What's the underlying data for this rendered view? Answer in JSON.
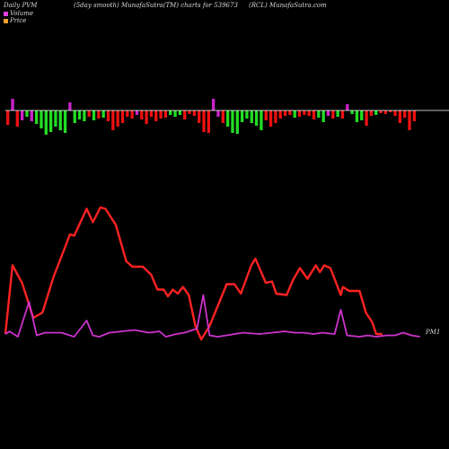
{
  "header": {
    "left": "Daily PVM",
    "center": "(5day smooth) MunafaSutra(TM) charts for 539673",
    "right": "(RCL) MunafaSutra.com"
  },
  "legend": {
    "volume_label": "Volume",
    "price_label": "Price",
    "volume_color": "#e040e0",
    "price_color": "#f0a030"
  },
  "end_label": "PM1",
  "colors": {
    "background": "#000000",
    "baseline": "#ffffff",
    "bar_up": "#22dd22",
    "bar_down": "#ee1111",
    "bar_high": "#cc22cc",
    "price_line": "#ff2222",
    "volume_line": "#cc33cc"
  },
  "chart_data": {
    "type": "line",
    "title": "",
    "bars": [
      {
        "v": -16,
        "c": "red"
      },
      {
        "v": 13,
        "c": "magenta"
      },
      {
        "v": -18,
        "c": "red"
      },
      {
        "v": -11,
        "c": "magenta"
      },
      {
        "v": -7,
        "c": "green"
      },
      {
        "v": -12,
        "c": "magenta"
      },
      {
        "v": -15,
        "c": "green"
      },
      {
        "v": -20,
        "c": "green"
      },
      {
        "v": -27,
        "c": "green"
      },
      {
        "v": -24,
        "c": "green"
      },
      {
        "v": -18,
        "c": "green"
      },
      {
        "v": -22,
        "c": "green"
      },
      {
        "v": -25,
        "c": "green"
      },
      {
        "v": 9,
        "c": "magenta"
      },
      {
        "v": -14,
        "c": "green"
      },
      {
        "v": -10,
        "c": "green"
      },
      {
        "v": -12,
        "c": "green"
      },
      {
        "v": -7,
        "c": "red"
      },
      {
        "v": -11,
        "c": "green"
      },
      {
        "v": -9,
        "c": "red"
      },
      {
        "v": -8,
        "c": "green"
      },
      {
        "v": -12,
        "c": "red"
      },
      {
        "v": -22,
        "c": "red"
      },
      {
        "v": -18,
        "c": "red"
      },
      {
        "v": -14,
        "c": "red"
      },
      {
        "v": -7,
        "c": "red"
      },
      {
        "v": -9,
        "c": "red"
      },
      {
        "v": -5,
        "c": "magenta"
      },
      {
        "v": -10,
        "c": "red"
      },
      {
        "v": -15,
        "c": "red"
      },
      {
        "v": -7,
        "c": "red"
      },
      {
        "v": -12,
        "c": "red"
      },
      {
        "v": -9,
        "c": "red"
      },
      {
        "v": -8,
        "c": "red"
      },
      {
        "v": -5,
        "c": "green"
      },
      {
        "v": -7,
        "c": "green"
      },
      {
        "v": -5,
        "c": "green"
      },
      {
        "v": -10,
        "c": "red"
      },
      {
        "v": -4,
        "c": "red"
      },
      {
        "v": -6,
        "c": "red"
      },
      {
        "v": -14,
        "c": "red"
      },
      {
        "v": -24,
        "c": "red"
      },
      {
        "v": -25,
        "c": "red"
      },
      {
        "v": 13,
        "c": "magenta"
      },
      {
        "v": -7,
        "c": "magenta"
      },
      {
        "v": -14,
        "c": "red"
      },
      {
        "v": -18,
        "c": "green"
      },
      {
        "v": -25,
        "c": "green"
      },
      {
        "v": -26,
        "c": "green"
      },
      {
        "v": -13,
        "c": "green"
      },
      {
        "v": -9,
        "c": "green"
      },
      {
        "v": -14,
        "c": "green"
      },
      {
        "v": -17,
        "c": "green"
      },
      {
        "v": -22,
        "c": "green"
      },
      {
        "v": -11,
        "c": "red"
      },
      {
        "v": -18,
        "c": "red"
      },
      {
        "v": -14,
        "c": "red"
      },
      {
        "v": -9,
        "c": "red"
      },
      {
        "v": -6,
        "c": "red"
      },
      {
        "v": -5,
        "c": "red"
      },
      {
        "v": -8,
        "c": "green"
      },
      {
        "v": -7,
        "c": "red"
      },
      {
        "v": -5,
        "c": "red"
      },
      {
        "v": -6,
        "c": "red"
      },
      {
        "v": -10,
        "c": "red"
      },
      {
        "v": -8,
        "c": "green"
      },
      {
        "v": -13,
        "c": "green"
      },
      {
        "v": -6,
        "c": "magenta"
      },
      {
        "v": -9,
        "c": "red"
      },
      {
        "v": -7,
        "c": "green"
      },
      {
        "v": -9,
        "c": "red"
      },
      {
        "v": 7,
        "c": "magenta"
      },
      {
        "v": -4,
        "c": "green"
      },
      {
        "v": -13,
        "c": "green"
      },
      {
        "v": -11,
        "c": "green"
      },
      {
        "v": -17,
        "c": "red"
      },
      {
        "v": -6,
        "c": "red"
      },
      {
        "v": -5,
        "c": "green"
      },
      {
        "v": -3,
        "c": "red"
      },
      {
        "v": -4,
        "c": "red"
      },
      {
        "v": -2,
        "c": "red"
      },
      {
        "v": -6,
        "c": "red"
      },
      {
        "v": -14,
        "c": "red"
      },
      {
        "v": -8,
        "c": "red"
      },
      {
        "v": -22,
        "c": "red"
      },
      {
        "v": -12,
        "c": "red"
      }
    ],
    "price_series": [
      {
        "x": 0,
        "y": 0.04
      },
      {
        "x": 1.7,
        "y": 0.55
      },
      {
        "x": 4,
        "y": 0.42
      },
      {
        "x": 6.7,
        "y": 0.16
      },
      {
        "x": 8.9,
        "y": 0.2
      },
      {
        "x": 11.5,
        "y": 0.46
      },
      {
        "x": 15.5,
        "y": 0.78
      },
      {
        "x": 16.5,
        "y": 0.77
      },
      {
        "x": 19.5,
        "y": 0.97
      },
      {
        "x": 21,
        "y": 0.87
      },
      {
        "x": 22.8,
        "y": 0.98
      },
      {
        "x": 24,
        "y": 0.97
      },
      {
        "x": 26.5,
        "y": 0.85
      },
      {
        "x": 29,
        "y": 0.58
      },
      {
        "x": 30.5,
        "y": 0.54
      },
      {
        "x": 33,
        "y": 0.54
      },
      {
        "x": 35,
        "y": 0.48
      },
      {
        "x": 36.5,
        "y": 0.37
      },
      {
        "x": 38,
        "y": 0.37
      },
      {
        "x": 39,
        "y": 0.32
      },
      {
        "x": 40.2,
        "y": 0.37
      },
      {
        "x": 41.4,
        "y": 0.34
      },
      {
        "x": 42.6,
        "y": 0.39
      },
      {
        "x": 44,
        "y": 0.33
      },
      {
        "x": 45.6,
        "y": 0.1
      },
      {
        "x": 47,
        "y": 0.0
      },
      {
        "x": 49,
        "y": 0.1
      },
      {
        "x": 53.1,
        "y": 0.41
      },
      {
        "x": 55,
        "y": 0.41
      },
      {
        "x": 56.5,
        "y": 0.34
      },
      {
        "x": 59,
        "y": 0.55
      },
      {
        "x": 60,
        "y": 0.6
      },
      {
        "x": 62.5,
        "y": 0.42
      },
      {
        "x": 64,
        "y": 0.43
      },
      {
        "x": 65,
        "y": 0.34
      },
      {
        "x": 67.5,
        "y": 0.33
      },
      {
        "x": 69,
        "y": 0.44
      },
      {
        "x": 70.7,
        "y": 0.53
      },
      {
        "x": 72.5,
        "y": 0.45
      },
      {
        "x": 74.5,
        "y": 0.55
      },
      {
        "x": 75.5,
        "y": 0.5
      },
      {
        "x": 76.5,
        "y": 0.55
      },
      {
        "x": 78,
        "y": 0.53
      },
      {
        "x": 80.5,
        "y": 0.33
      },
      {
        "x": 81,
        "y": 0.39
      },
      {
        "x": 82.5,
        "y": 0.36
      },
      {
        "x": 85,
        "y": 0.36
      },
      {
        "x": 86.5,
        "y": 0.2
      },
      {
        "x": 88,
        "y": 0.13
      },
      {
        "x": 89,
        "y": 0.04
      },
      {
        "x": 90.5,
        "y": 0.04
      }
    ],
    "volume_series": [
      {
        "x": 0,
        "y": 0.04
      },
      {
        "x": 1,
        "y": 0.06
      },
      {
        "x": 3,
        "y": 0.02
      },
      {
        "x": 5.7,
        "y": 0.28
      },
      {
        "x": 7.5,
        "y": 0.03
      },
      {
        "x": 9.5,
        "y": 0.05
      },
      {
        "x": 13.5,
        "y": 0.05
      },
      {
        "x": 16.5,
        "y": 0.02
      },
      {
        "x": 19.5,
        "y": 0.14
      },
      {
        "x": 21,
        "y": 0.03
      },
      {
        "x": 22.5,
        "y": 0.02
      },
      {
        "x": 25,
        "y": 0.05
      },
      {
        "x": 28,
        "y": 0.06
      },
      {
        "x": 31,
        "y": 0.07
      },
      {
        "x": 34.5,
        "y": 0.05
      },
      {
        "x": 37,
        "y": 0.06
      },
      {
        "x": 38.5,
        "y": 0.02
      },
      {
        "x": 41,
        "y": 0.04
      },
      {
        "x": 43,
        "y": 0.05
      },
      {
        "x": 46,
        "y": 0.08
      },
      {
        "x": 47.5,
        "y": 0.33
      },
      {
        "x": 49,
        "y": 0.03
      },
      {
        "x": 51,
        "y": 0.02
      },
      {
        "x": 55,
        "y": 0.04
      },
      {
        "x": 57,
        "y": 0.05
      },
      {
        "x": 61,
        "y": 0.04
      },
      {
        "x": 64,
        "y": 0.05
      },
      {
        "x": 67,
        "y": 0.06
      },
      {
        "x": 69.5,
        "y": 0.05
      },
      {
        "x": 71.5,
        "y": 0.05
      },
      {
        "x": 74,
        "y": 0.04
      },
      {
        "x": 76,
        "y": 0.05
      },
      {
        "x": 79,
        "y": 0.04
      },
      {
        "x": 80.5,
        "y": 0.22
      },
      {
        "x": 82,
        "y": 0.03
      },
      {
        "x": 85,
        "y": 0.02
      },
      {
        "x": 87,
        "y": 0.03
      },
      {
        "x": 89,
        "y": 0.02
      },
      {
        "x": 91.5,
        "y": 0.03
      },
      {
        "x": 93.5,
        "y": 0.03
      },
      {
        "x": 95.5,
        "y": 0.05
      },
      {
        "x": 97.5,
        "y": 0.03
      },
      {
        "x": 99.5,
        "y": 0.02
      }
    ],
    "baseline": 0,
    "grid": false
  }
}
